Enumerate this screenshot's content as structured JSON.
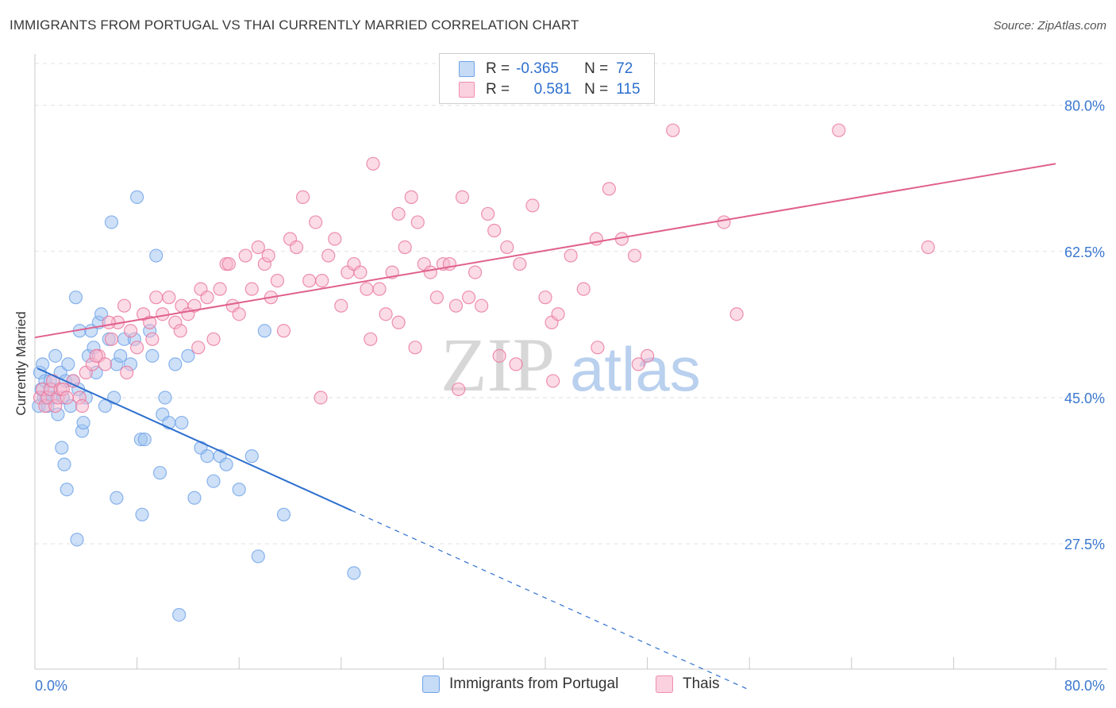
{
  "title": "IMMIGRANTS FROM PORTUGAL VS THAI CURRENTLY MARRIED CORRELATION CHART",
  "source": "Source: ZipAtlas.com",
  "watermark": {
    "part1": "ZIP",
    "part2": "atlas"
  },
  "legend_stats": [
    {
      "r_label": "R =",
      "r_value": "-0.365",
      "n_label": "N =",
      "n_value": "72",
      "color": "#6fa3e8"
    },
    {
      "r_label": "R =",
      "r_value": "0.581",
      "n_label": "N =",
      "n_value": "115",
      "color": "#f08db0"
    }
  ],
  "bottom_legend": [
    {
      "label": "Immigrants from Portugal",
      "color": "#9cc1f0"
    },
    {
      "label": "Thais",
      "color": "#f7b8cd"
    }
  ],
  "chart_data": {
    "type": "scatter",
    "ylabel": "Currently Married",
    "xlim": [
      0,
      80
    ],
    "ylim": [
      12.5,
      85
    ],
    "x_tick_labels": [
      "0.0%",
      "80.0%"
    ],
    "y_ticks": [
      27.5,
      45.0,
      62.5,
      80.0
    ],
    "y_tick_labels": [
      "27.5%",
      "45.0%",
      "62.5%",
      "80.0%"
    ],
    "grid": true,
    "series": [
      {
        "name": "Immigrants from Portugal",
        "color": "#6fa3e8",
        "fill": "#9cc1f0",
        "points": [
          [
            0.3,
            44
          ],
          [
            0.4,
            48
          ],
          [
            0.5,
            46
          ],
          [
            0.6,
            49
          ],
          [
            0.7,
            45
          ],
          [
            0.8,
            47
          ],
          [
            0.9,
            45
          ],
          [
            1,
            44
          ],
          [
            1.2,
            47
          ],
          [
            1.3,
            46
          ],
          [
            1.4,
            45
          ],
          [
            1.6,
            50
          ],
          [
            1.8,
            43
          ],
          [
            2,
            48
          ],
          [
            2.2,
            45
          ],
          [
            2.4,
            47
          ],
          [
            2.6,
            49
          ],
          [
            2.8,
            44
          ],
          [
            3,
            47
          ],
          [
            3.2,
            57
          ],
          [
            3.4,
            46
          ],
          [
            3.5,
            53
          ],
          [
            3.7,
            41
          ],
          [
            3.8,
            42
          ],
          [
            4,
            45
          ],
          [
            4.2,
            50
          ],
          [
            4.4,
            53
          ],
          [
            4.6,
            51
          ],
          [
            4.8,
            48
          ],
          [
            5,
            54
          ],
          [
            5.2,
            55
          ],
          [
            5.5,
            44
          ],
          [
            5.8,
            52
          ],
          [
            6,
            66
          ],
          [
            6.2,
            45
          ],
          [
            6.4,
            49
          ],
          [
            6.7,
            50
          ],
          [
            7,
            52
          ],
          [
            7.5,
            49
          ],
          [
            7.8,
            52
          ],
          [
            8,
            69
          ],
          [
            8.3,
            40
          ],
          [
            8.6,
            40
          ],
          [
            9,
            53
          ],
          [
            9.2,
            50
          ],
          [
            9.5,
            62
          ],
          [
            9.8,
            36
          ],
          [
            10,
            43
          ],
          [
            10.2,
            45
          ],
          [
            10.5,
            42
          ],
          [
            11,
            49
          ],
          [
            11.5,
            42
          ],
          [
            12,
            50
          ],
          [
            12.5,
            33
          ],
          [
            13,
            39
          ],
          [
            13.5,
            38
          ],
          [
            14,
            35
          ],
          [
            14.5,
            38
          ],
          [
            15,
            37
          ],
          [
            16,
            34
          ],
          [
            17,
            38
          ],
          [
            17.5,
            26
          ],
          [
            18,
            53
          ],
          [
            19.5,
            31
          ],
          [
            2.1,
            39
          ],
          [
            2.3,
            37
          ],
          [
            2.5,
            34
          ],
          [
            3.3,
            28
          ],
          [
            6.4,
            33
          ],
          [
            8.4,
            31
          ],
          [
            11.3,
            19
          ],
          [
            25,
            24
          ]
        ]
      },
      {
        "name": "Thais",
        "color": "#e8769c",
        "fill": "#f7b8cd",
        "points": [
          [
            0.4,
            45
          ],
          [
            0.6,
            46
          ],
          [
            0.8,
            44
          ],
          [
            1,
            45
          ],
          [
            1.2,
            46
          ],
          [
            1.4,
            47
          ],
          [
            1.6,
            44
          ],
          [
            1.8,
            45
          ],
          [
            2,
            46
          ],
          [
            2.2,
            46
          ],
          [
            2.5,
            45
          ],
          [
            3,
            47
          ],
          [
            3.5,
            45
          ],
          [
            4,
            48
          ],
          [
            4.5,
            49
          ],
          [
            5,
            50
          ],
          [
            5.5,
            49
          ],
          [
            6,
            52
          ],
          [
            6.5,
            54
          ],
          [
            7,
            56
          ],
          [
            7.5,
            53
          ],
          [
            8,
            51
          ],
          [
            8.5,
            55
          ],
          [
            9,
            54
          ],
          [
            9.5,
            57
          ],
          [
            10,
            55
          ],
          [
            10.5,
            57
          ],
          [
            11,
            54
          ],
          [
            11.5,
            56
          ],
          [
            12,
            55
          ],
          [
            12.5,
            56
          ],
          [
            13,
            58
          ],
          [
            13.5,
            57
          ],
          [
            14,
            52
          ],
          [
            14.5,
            58
          ],
          [
            15,
            61
          ],
          [
            15.5,
            56
          ],
          [
            16,
            55
          ],
          [
            16.5,
            62
          ],
          [
            17,
            58
          ],
          [
            17.5,
            63
          ],
          [
            18,
            61
          ],
          [
            18.5,
            57
          ],
          [
            19,
            59
          ],
          [
            19.5,
            53
          ],
          [
            20,
            64
          ],
          [
            20.5,
            63
          ],
          [
            21,
            69
          ],
          [
            21.5,
            59
          ],
          [
            22,
            66
          ],
          [
            22.5,
            59
          ],
          [
            23,
            62
          ],
          [
            23.5,
            64
          ],
          [
            24,
            56
          ],
          [
            24.5,
            60
          ],
          [
            25,
            61
          ],
          [
            25.5,
            60
          ],
          [
            26,
            58
          ],
          [
            26.5,
            73
          ],
          [
            27,
            58
          ],
          [
            27.5,
            55
          ],
          [
            28,
            60
          ],
          [
            28.5,
            67
          ],
          [
            29,
            63
          ],
          [
            29.5,
            69
          ],
          [
            30,
            66
          ],
          [
            30.5,
            61
          ],
          [
            31,
            60
          ],
          [
            31.5,
            57
          ],
          [
            32,
            61
          ],
          [
            32.5,
            61
          ],
          [
            33,
            56
          ],
          [
            33.5,
            69
          ],
          [
            34,
            57
          ],
          [
            34.5,
            60
          ],
          [
            35,
            56
          ],
          [
            35.5,
            67
          ],
          [
            36,
            65
          ],
          [
            37,
            63
          ],
          [
            38,
            61
          ],
          [
            39,
            68
          ],
          [
            40,
            57
          ],
          [
            40.5,
            54
          ],
          [
            41,
            55
          ],
          [
            42,
            62
          ],
          [
            43,
            58
          ],
          [
            44,
            64
          ],
          [
            45,
            70
          ],
          [
            46,
            64
          ],
          [
            47,
            62
          ],
          [
            48,
            50
          ],
          [
            50,
            77
          ],
          [
            54,
            66
          ],
          [
            55,
            55
          ],
          [
            63,
            77
          ],
          [
            70,
            63
          ],
          [
            3.7,
            44
          ],
          [
            4.8,
            50
          ],
          [
            5.8,
            54
          ],
          [
            7.2,
            48
          ],
          [
            9.2,
            52
          ],
          [
            11.4,
            53
          ],
          [
            12.8,
            51
          ],
          [
            15.2,
            61
          ],
          [
            18.3,
            62
          ],
          [
            22.4,
            45
          ],
          [
            26.3,
            52
          ],
          [
            28.5,
            54
          ],
          [
            29.8,
            51
          ],
          [
            33.2,
            46
          ],
          [
            36.4,
            50
          ],
          [
            37.7,
            49
          ],
          [
            40.6,
            47
          ],
          [
            44.1,
            51
          ],
          [
            47.3,
            49
          ]
        ]
      }
    ],
    "trend_lines": [
      {
        "series": "Immigrants from Portugal",
        "x": [
          0.2,
          24.8
        ],
        "y": [
          48.5,
          31.5
        ],
        "dash_to": [
          56,
          10
        ],
        "color": "#2d6fce"
      },
      {
        "series": "Thais",
        "x": [
          0,
          80
        ],
        "y": [
          52.2,
          73
        ],
        "color": "#e0608e"
      }
    ]
  }
}
